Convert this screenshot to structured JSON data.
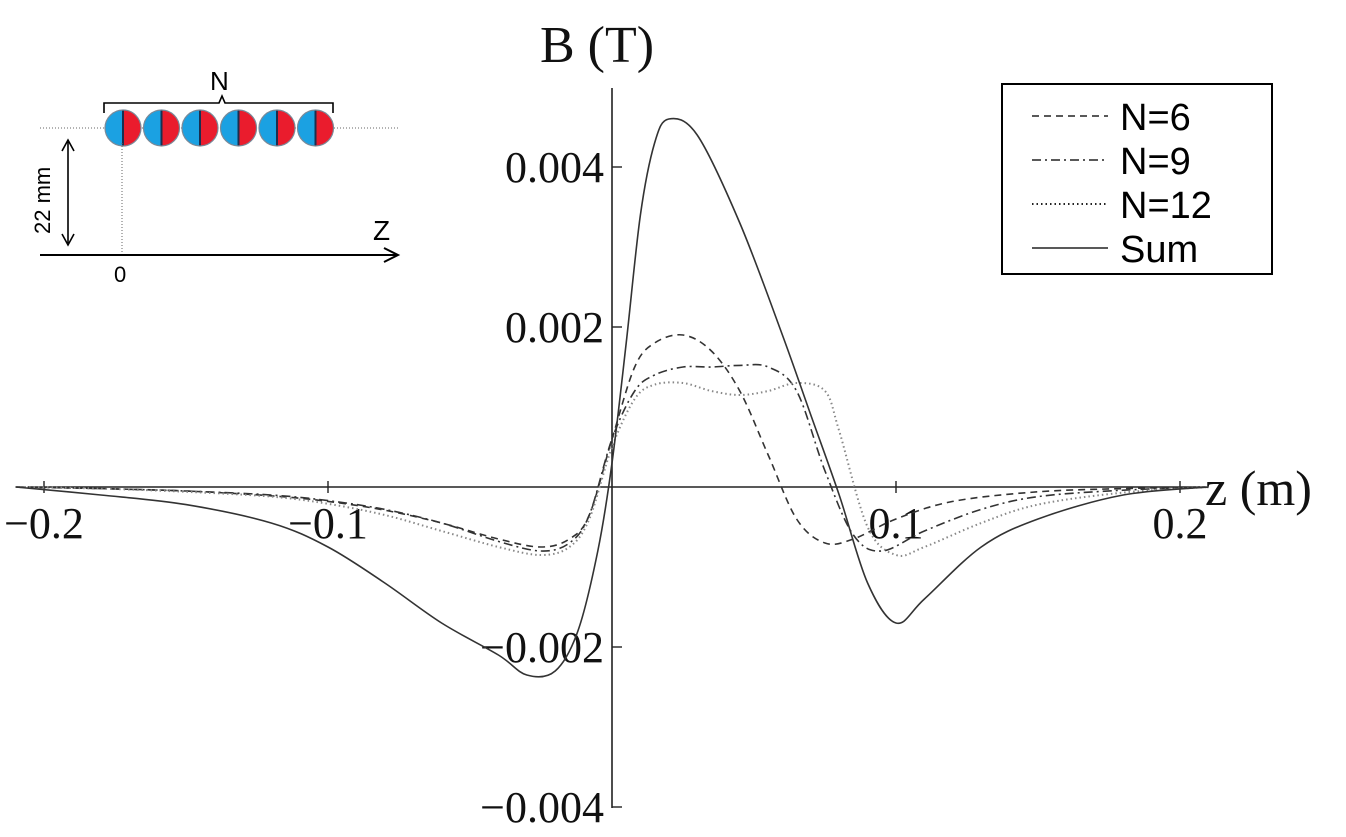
{
  "chart_data": {
    "type": "line",
    "xlabel": "z (m)",
    "ylabel": "B (T)",
    "xlim": [
      -0.21,
      0.21
    ],
    "ylim": [
      -0.004,
      0.005
    ],
    "xticks": [
      {
        "value": -0.2,
        "label": "−0.2"
      },
      {
        "value": -0.1,
        "label": "−0.1"
      },
      {
        "value": 0.1,
        "label": "0.1"
      },
      {
        "value": 0.2,
        "label": "0.2"
      }
    ],
    "yticks": [
      {
        "value": 0.004,
        "label": "0.004"
      },
      {
        "value": 0.002,
        "label": "0.002"
      },
      {
        "value": -0.002,
        "label": "−0.002"
      },
      {
        "value": -0.004,
        "label": "−0.004"
      }
    ],
    "legend_position": "top-right",
    "series": [
      {
        "name": "N=6",
        "style": "dashed",
        "x": [
          -0.21,
          -0.18,
          -0.15,
          -0.12,
          -0.1,
          -0.08,
          -0.06,
          -0.04,
          -0.025,
          -0.015,
          -0.008,
          0.0,
          0.008,
          0.015,
          0.025,
          0.035,
          0.045,
          0.055,
          0.065,
          0.075,
          0.085,
          0.1,
          0.12,
          0.15,
          0.18,
          0.21
        ],
        "y": [
          0.0,
          -2e-05,
          -5e-05,
          -0.00011,
          -0.00018,
          -0.00029,
          -0.00045,
          -0.00065,
          -0.00075,
          -0.00065,
          -0.00035,
          0.0006,
          0.0015,
          0.0018,
          0.0019,
          0.0017,
          0.0012,
          0.0004,
          -0.0004,
          -0.0007,
          -0.00065,
          -0.0004,
          -0.00018,
          -6e-05,
          -2e-05,
          0.0
        ]
      },
      {
        "name": "N=9",
        "style": "dashdot",
        "x": [
          -0.21,
          -0.18,
          -0.15,
          -0.12,
          -0.1,
          -0.08,
          -0.06,
          -0.04,
          -0.025,
          -0.015,
          -0.008,
          0.0,
          0.008,
          0.015,
          0.025,
          0.035,
          0.045,
          0.055,
          0.065,
          0.075,
          0.085,
          0.095,
          0.11,
          0.13,
          0.15,
          0.18,
          0.21
        ],
        "y": [
          0.0,
          -2e-05,
          -5e-05,
          -0.0001,
          -0.00017,
          -0.00028,
          -0.00045,
          -0.00068,
          -0.0008,
          -0.0007,
          -0.00035,
          0.0006,
          0.0012,
          0.0014,
          0.0015,
          0.0015,
          0.00152,
          0.0015,
          0.0012,
          0.0002,
          -0.0006,
          -0.0008,
          -0.00055,
          -0.00028,
          -0.00012,
          -4e-05,
          0.0
        ]
      },
      {
        "name": "N=12",
        "style": "dotted",
        "x": [
          -0.21,
          -0.18,
          -0.15,
          -0.12,
          -0.1,
          -0.08,
          -0.06,
          -0.04,
          -0.025,
          -0.015,
          -0.008,
          0.0,
          0.008,
          0.015,
          0.025,
          0.035,
          0.045,
          0.055,
          0.065,
          0.075,
          0.08,
          0.09,
          0.1,
          0.11,
          0.13,
          0.15,
          0.18,
          0.21
        ],
        "y": [
          0.0,
          -2e-05,
          -6e-05,
          -0.00012,
          -0.00021,
          -0.00035,
          -0.00055,
          -0.00075,
          -0.00085,
          -0.00075,
          -0.0004,
          0.0005,
          0.0011,
          0.00128,
          0.0013,
          0.0012,
          0.00115,
          0.0012,
          0.0013,
          0.0012,
          0.0007,
          -0.0005,
          -0.00085,
          -0.00075,
          -0.00045,
          -0.00022,
          -7e-05,
          0.0
        ]
      },
      {
        "name": "Sum",
        "style": "solid",
        "x": [
          -0.21,
          -0.18,
          -0.15,
          -0.12,
          -0.1,
          -0.08,
          -0.06,
          -0.04,
          -0.03,
          -0.02,
          -0.012,
          -0.005,
          0.0,
          0.005,
          0.01,
          0.015,
          0.02,
          0.03,
          0.045,
          0.06,
          0.07,
          0.08,
          0.09,
          0.1,
          0.11,
          0.13,
          0.15,
          0.18,
          0.21
        ],
        "y": [
          0.0,
          -0.0001,
          -0.00022,
          -0.00045,
          -0.00075,
          -0.0012,
          -0.0017,
          -0.0021,
          -0.00235,
          -0.0023,
          -0.0018,
          -0.0008,
          0.0003,
          0.0018,
          0.0034,
          0.0043,
          0.0046,
          0.0044,
          0.0033,
          0.0019,
          0.0009,
          -0.0001,
          -0.0012,
          -0.0017,
          -0.0014,
          -0.00075,
          -0.0004,
          -0.0001,
          0.0
        ]
      }
    ],
    "inset": {
      "count_label": "N",
      "distance_label": "22 mm",
      "axis_label": "Z",
      "origin_label": "0",
      "magnet_count": 6,
      "colors": {
        "north": "#ea1c2d",
        "south": "#1ba1e2"
      }
    }
  }
}
